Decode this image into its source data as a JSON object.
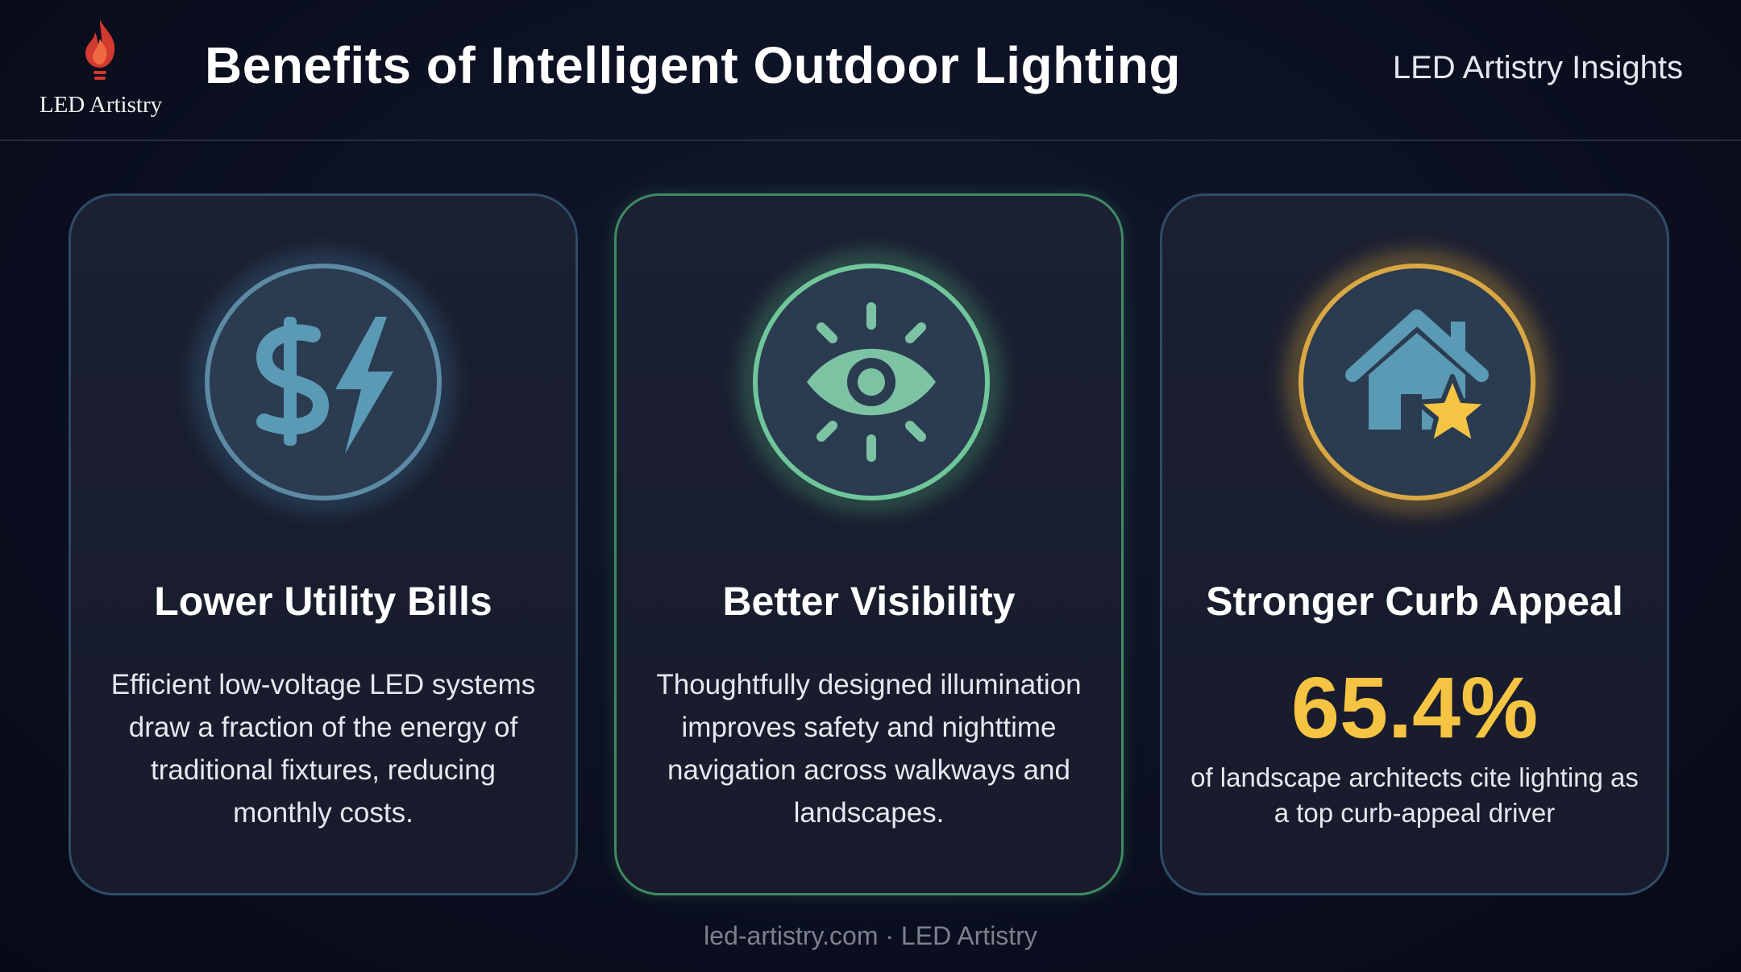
{
  "header": {
    "brand": "LED Artistry",
    "title": "Benefits of Intelligent Outdoor Lighting",
    "tagline": "LED Artistry Insights"
  },
  "cards": [
    {
      "title": "Lower Utility Bills",
      "body": "Efficient low-voltage LED systems draw a fraction of the energy of traditional fixtures, reducing monthly costs."
    },
    {
      "title": "Better Visibility",
      "body": "Thoughtfully designed illumination improves safety and nighttime navigation across walkways and landscapes."
    },
    {
      "title": "Stronger Curb Appeal",
      "stat": "65.4%",
      "stat_caption": "of landscape architects cite lighting as a top curb-appeal driver"
    }
  ],
  "footer": "led-artistry.com · LED Artistry"
}
